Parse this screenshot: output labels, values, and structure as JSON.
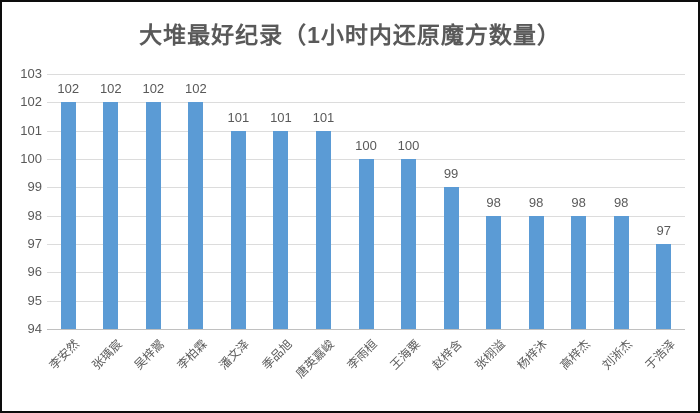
{
  "window": {
    "background": "#ffffff",
    "border_color": "#0d0d0d"
  },
  "chart_data": {
    "type": "bar",
    "title": "大堆最好纪录（1小时内还原魔方数量）",
    "categories": [
      "李安然",
      "张瑀宸",
      "吴梓翯",
      "李柏霖",
      "潘文泽",
      "季品旭",
      "唐英嘉峻",
      "李雨桓",
      "王海粟",
      "赵梓含",
      "张栩溢",
      "杨梓沐",
      "高梓杰",
      "刘淅杰",
      "于浩泽"
    ],
    "values": [
      102,
      102,
      102,
      102,
      101,
      101,
      101,
      100,
      100,
      99,
      98,
      98,
      98,
      98,
      97
    ],
    "xlabel": "",
    "ylabel": "",
    "ylim": [
      94,
      103
    ],
    "ytick_step": 1,
    "grid": true,
    "data_labels": true,
    "legend": "none",
    "bar_color": "#5b9bd5",
    "gridline_color": "#dcdcdc",
    "axis_line_color": "#c0c0c0",
    "text_color": "#595959",
    "title_color": "#595959"
  }
}
